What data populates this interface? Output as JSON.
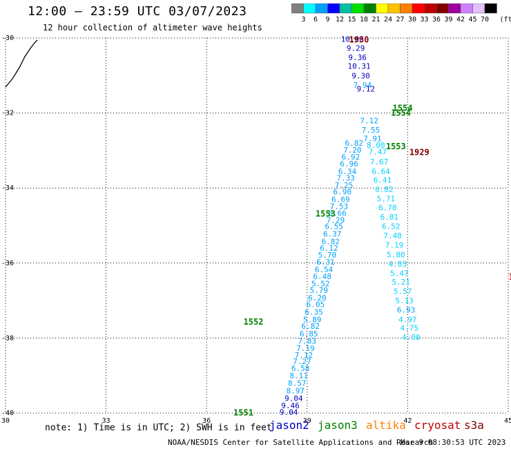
{
  "title": "12:00 – 23:59 UTC 03/07/2023",
  "subtitle": "12 hour collection of altimeter wave heights",
  "colorbar": {
    "unit_label": "(ft)",
    "ticks": [
      "3",
      "6",
      "9",
      "12",
      "15",
      "18",
      "21",
      "24",
      "27",
      "30",
      "33",
      "36",
      "39",
      "42",
      "45",
      "70"
    ],
    "colors": [
      "#808080",
      "#00ffff",
      "#00a0ff",
      "#0000ff",
      "#00c0a0",
      "#00e000",
      "#008000",
      "#ffff00",
      "#ffc000",
      "#ff8000",
      "#ff0000",
      "#c00000",
      "#800000",
      "#a000a0",
      "#d080ff",
      "#e0c0ff",
      "#000000"
    ]
  },
  "axes": {
    "lon_labels": [
      "30",
      "33",
      "36",
      "39",
      "42",
      "45"
    ],
    "lat_labels": [
      "-30",
      "-32",
      "-34",
      "-36",
      "-38",
      "-40"
    ]
  },
  "colors": {
    "jason2": "#0000c0",
    "jason3": "#008000",
    "altika": "#ff8000",
    "cryosat": "#c00000",
    "s3a": "#800000",
    "light_blue": "#00a0ff",
    "cyan": "#00d0ff"
  },
  "time_labels": [
    {
      "text": "1930",
      "lon": 40.25,
      "lat": -30.03,
      "sat": "s3a"
    },
    {
      "text": "1554",
      "lon": 41.55,
      "lat": -31.85,
      "sat": "jason3"
    },
    {
      "text": "1554",
      "lon": 41.5,
      "lat": -31.98,
      "sat": "jason3"
    },
    {
      "text": "1553",
      "lon": 41.35,
      "lat": -32.87,
      "sat": "jason3"
    },
    {
      "text": "1929",
      "lon": 42.05,
      "lat": -33.03,
      "sat": "s3a"
    },
    {
      "text": "1553",
      "lon": 39.25,
      "lat": -34.67,
      "sat": "jason3"
    },
    {
      "text": "1552",
      "lon": 37.1,
      "lat": -37.55,
      "sat": "jason3"
    },
    {
      "text": "1551",
      "lon": 36.8,
      "lat": -39.97,
      "sat": "jason3"
    }
  ],
  "tracks": [
    {
      "name": "track-a",
      "color": "#00a0ff",
      "points": [
        {
          "lon": 38.45,
          "lat": -39.97,
          "v": "9.04",
          "c": "#0000c0"
        },
        {
          "lon": 38.5,
          "lat": -39.8,
          "v": "9.46",
          "c": "#0000c0"
        },
        {
          "lon": 38.6,
          "lat": -39.6,
          "v": "9.04",
          "c": "#0000c0"
        },
        {
          "lon": 38.65,
          "lat": -39.4,
          "v": "8.97",
          "c": "#00a0ff"
        },
        {
          "lon": 38.7,
          "lat": -39.2,
          "v": "8.57",
          "c": "#00a0ff"
        },
        {
          "lon": 38.75,
          "lat": -39.0,
          "v": "8.11",
          "c": "#00a0ff"
        },
        {
          "lon": 38.8,
          "lat": -38.8,
          "v": "6.58",
          "c": "#00a0ff"
        },
        {
          "lon": 38.85,
          "lat": -38.62,
          "v": "7.27",
          "c": "#00a0ff"
        },
        {
          "lon": 38.9,
          "lat": -38.45,
          "v": "7.12",
          "c": "#00a0ff"
        },
        {
          "lon": 38.95,
          "lat": -38.27,
          "v": "7.19",
          "c": "#00a0ff"
        },
        {
          "lon": 39.0,
          "lat": -38.08,
          "v": "7.83",
          "c": "#00a0ff"
        },
        {
          "lon": 39.05,
          "lat": -37.88,
          "v": "6.85",
          "c": "#00a0ff"
        },
        {
          "lon": 39.1,
          "lat": -37.68,
          "v": "6.82",
          "c": "#00a0ff"
        },
        {
          "lon": 39.15,
          "lat": -37.5,
          "v": "5.89",
          "c": "#00a0ff"
        },
        {
          "lon": 39.2,
          "lat": -37.3,
          "v": "6.35",
          "c": "#00a0ff"
        },
        {
          "lon": 39.25,
          "lat": -37.1,
          "v": "6.05",
          "c": "#00a0ff"
        },
        {
          "lon": 39.3,
          "lat": -36.92,
          "v": "6.20",
          "c": "#00a0ff"
        },
        {
          "lon": 39.35,
          "lat": -36.72,
          "v": "5.79",
          "c": "#00a0ff"
        },
        {
          "lon": 39.4,
          "lat": -36.55,
          "v": "5.52",
          "c": "#00a0ff"
        },
        {
          "lon": 39.45,
          "lat": -36.35,
          "v": "6.48",
          "c": "#00a0ff"
        },
        {
          "lon": 39.5,
          "lat": -36.17,
          "v": "6.54",
          "c": "#00a0ff"
        },
        {
          "lon": 39.55,
          "lat": -35.97,
          "v": "6.31",
          "c": "#00a0ff"
        },
        {
          "lon": 39.6,
          "lat": -35.78,
          "v": "5.70",
          "c": "#00a0ff"
        },
        {
          "lon": 39.65,
          "lat": -35.6,
          "v": "6.12",
          "c": "#00a0ff"
        },
        {
          "lon": 39.7,
          "lat": -35.42,
          "v": "6.82",
          "c": "#00a0ff"
        },
        {
          "lon": 39.75,
          "lat": -35.22,
          "v": "6.37",
          "c": "#00a0ff"
        },
        {
          "lon": 39.8,
          "lat": -35.02,
          "v": "6.55",
          "c": "#00a0ff"
        },
        {
          "lon": 39.85,
          "lat": -34.85,
          "v": "7.29",
          "c": "#00a0ff"
        },
        {
          "lon": 39.9,
          "lat": -34.67,
          "v": "6.66",
          "c": "#00a0ff"
        },
        {
          "lon": 39.95,
          "lat": -34.48,
          "v": "7.53",
          "c": "#00a0ff"
        },
        {
          "lon": 40.0,
          "lat": -34.3,
          "v": "6.69",
          "c": "#00a0ff"
        },
        {
          "lon": 40.05,
          "lat": -34.1,
          "v": "6.90",
          "c": "#00a0ff"
        },
        {
          "lon": 40.1,
          "lat": -33.92,
          "v": "7.25",
          "c": "#00a0ff"
        },
        {
          "lon": 40.15,
          "lat": -33.73,
          "v": "7.33",
          "c": "#00a0ff"
        },
        {
          "lon": 40.2,
          "lat": -33.55,
          "v": "6.34",
          "c": "#00a0ff"
        },
        {
          "lon": 40.25,
          "lat": -33.35,
          "v": "6.96",
          "c": "#00a0ff"
        },
        {
          "lon": 40.3,
          "lat": -33.17,
          "v": "6.92",
          "c": "#00a0ff"
        },
        {
          "lon": 40.35,
          "lat": -32.98,
          "v": "7.20",
          "c": "#00a0ff"
        },
        {
          "lon": 40.4,
          "lat": -32.8,
          "v": "6.82",
          "c": "#00a0ff"
        }
      ]
    },
    {
      "name": "track-b",
      "color": "#00d0ff",
      "points": [
        {
          "lon": 41.05,
          "lat": -32.85,
          "v": "8.00",
          "c": "#00d0ff"
        },
        {
          "lon": 41.1,
          "lat": -33.03,
          "v": "7.47",
          "c": "#00d0ff"
        },
        {
          "lon": 41.15,
          "lat": -33.3,
          "v": "7.67",
          "c": "#00d0ff"
        },
        {
          "lon": 41.2,
          "lat": -33.55,
          "v": "6.64",
          "c": "#00d0ff"
        },
        {
          "lon": 41.25,
          "lat": -33.78,
          "v": "6.41",
          "c": "#00d0ff"
        },
        {
          "lon": 41.3,
          "lat": -34.03,
          "v": "6.82",
          "c": "#00d0ff"
        },
        {
          "lon": 41.35,
          "lat": -34.28,
          "v": "5.71",
          "c": "#00d0ff"
        },
        {
          "lon": 41.4,
          "lat": -34.52,
          "v": "6.70",
          "c": "#00d0ff"
        },
        {
          "lon": 41.45,
          "lat": -34.77,
          "v": "6.01",
          "c": "#00d0ff"
        },
        {
          "lon": 41.5,
          "lat": -35.02,
          "v": "6.52",
          "c": "#00d0ff"
        },
        {
          "lon": 41.55,
          "lat": -35.27,
          "v": "7.40",
          "c": "#00d0ff"
        },
        {
          "lon": 41.6,
          "lat": -35.52,
          "v": "7.19",
          "c": "#00d0ff"
        },
        {
          "lon": 41.65,
          "lat": -35.77,
          "v": "5.80",
          "c": "#00d0ff"
        },
        {
          "lon": 41.7,
          "lat": -36.02,
          "v": "4.83",
          "c": "#00d0ff"
        },
        {
          "lon": 41.75,
          "lat": -36.27,
          "v": "5.47",
          "c": "#00d0ff"
        },
        {
          "lon": 41.8,
          "lat": -36.5,
          "v": "5.21",
          "c": "#00d0ff"
        },
        {
          "lon": 41.85,
          "lat": -36.75,
          "v": "5.57",
          "c": "#00d0ff"
        },
        {
          "lon": 41.9,
          "lat": -37.0,
          "v": "5.13",
          "c": "#00d0ff"
        },
        {
          "lon": 41.95,
          "lat": -37.25,
          "v": "6.93",
          "c": "#00a0ff"
        },
        {
          "lon": 42.0,
          "lat": -37.5,
          "v": "4.97",
          "c": "#00d0ff"
        },
        {
          "lon": 42.05,
          "lat": -37.73,
          "v": "4.75",
          "c": "#00d0ff"
        },
        {
          "lon": 42.1,
          "lat": -37.97,
          "v": "4.00",
          "c": "#00d0ff"
        }
      ]
    },
    {
      "name": "track-c",
      "color": "#0000c0",
      "points": [
        {
          "lon": 40.35,
          "lat": -30.03,
          "v": "10.06",
          "c": "#0000c0"
        },
        {
          "lon": 40.45,
          "lat": -30.27,
          "v": "9.29",
          "c": "#0000c0"
        },
        {
          "lon": 40.5,
          "lat": -30.52,
          "v": "9.36",
          "c": "#0000c0"
        },
        {
          "lon": 40.55,
          "lat": -30.75,
          "v": "10.31",
          "c": "#0000c0"
        },
        {
          "lon": 40.6,
          "lat": -31.0,
          "v": "9.30",
          "c": "#0000c0"
        },
        {
          "lon": 40.65,
          "lat": -31.25,
          "v": "7.94",
          "c": "#00a0ff"
        },
        {
          "lon": 40.75,
          "lat": -31.35,
          "v": "9.12",
          "c": "#0000c0"
        },
        {
          "lon": 40.85,
          "lat": -32.2,
          "v": "7.12",
          "c": "#00a0ff"
        },
        {
          "lon": 40.9,
          "lat": -32.45,
          "v": "7.55",
          "c": "#00a0ff"
        },
        {
          "lon": 40.95,
          "lat": -32.68,
          "v": "7.91",
          "c": "#00a0ff"
        }
      ]
    }
  ],
  "satellites": [
    {
      "label": "jason2",
      "key": "jason2"
    },
    {
      "label": "jason3",
      "key": "jason3"
    },
    {
      "label": "altika",
      "key": "altika"
    },
    {
      "label": "cryosat",
      "key": "cryosat"
    },
    {
      "label": "s3a",
      "key": "s3a"
    }
  ],
  "note": "note: 1) Time is in UTC; 2) SWH is in feet",
  "credit": "NOAA/NESDIS Center for Satellite Applications and Research",
  "footer_date": "Mar  9 08:30:53 UTC 2023"
}
